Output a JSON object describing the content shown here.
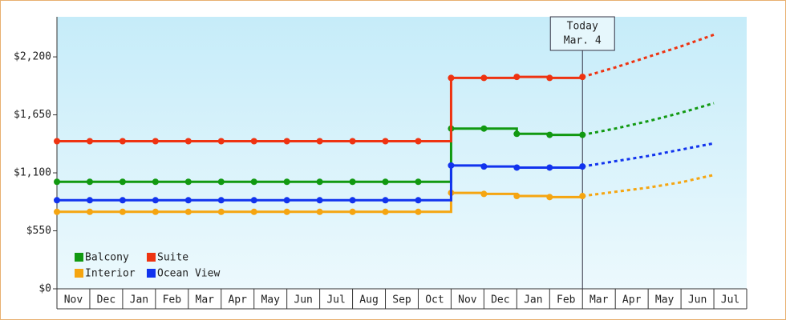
{
  "chart_data": {
    "type": "step-line",
    "categories": [
      "Nov",
      "Dec",
      "Jan",
      "Feb",
      "Mar",
      "Apr",
      "May",
      "Jun",
      "Jul",
      "Aug",
      "Sep",
      "Oct",
      "Nov",
      "Dec",
      "Jan",
      "Feb",
      "Mar",
      "Apr",
      "May",
      "Jun",
      "Jul"
    ],
    "series": [
      {
        "name": "Balcony",
        "color": "#119911",
        "values": [
          1015,
          1015,
          1015,
          1015,
          1015,
          1015,
          1015,
          1015,
          1015,
          1015,
          1015,
          1015,
          1520,
          1520,
          1470,
          1460,
          1460,
          null,
          null,
          null,
          null
        ],
        "forecast": [
          null,
          null,
          null,
          null,
          null,
          null,
          null,
          null,
          null,
          null,
          null,
          null,
          null,
          null,
          null,
          null,
          1460,
          1520,
          1590,
          1670,
          1760
        ]
      },
      {
        "name": "Suite",
        "color": "#ee3311",
        "values": [
          1400,
          1400,
          1400,
          1400,
          1400,
          1400,
          1400,
          1400,
          1400,
          1400,
          1400,
          1400,
          2000,
          2000,
          2010,
          2000,
          2010,
          null,
          null,
          null,
          null
        ],
        "forecast": [
          null,
          null,
          null,
          null,
          null,
          null,
          null,
          null,
          null,
          null,
          null,
          null,
          null,
          null,
          null,
          null,
          2010,
          2100,
          2200,
          2300,
          2410
        ]
      },
      {
        "name": "Interior",
        "color": "#f5a511",
        "values": [
          730,
          730,
          730,
          730,
          730,
          730,
          730,
          730,
          730,
          730,
          730,
          730,
          910,
          900,
          880,
          870,
          880,
          null,
          null,
          null,
          null
        ],
        "forecast": [
          null,
          null,
          null,
          null,
          null,
          null,
          null,
          null,
          null,
          null,
          null,
          null,
          null,
          null,
          null,
          null,
          880,
          920,
          960,
          1010,
          1080
        ]
      },
      {
        "name": "Ocean View",
        "color": "#1133ee",
        "values": [
          840,
          840,
          840,
          840,
          840,
          840,
          840,
          840,
          840,
          840,
          840,
          840,
          1170,
          1160,
          1150,
          1150,
          1160,
          null,
          null,
          null,
          null
        ],
        "forecast": [
          null,
          null,
          null,
          null,
          null,
          null,
          null,
          null,
          null,
          null,
          null,
          null,
          null,
          null,
          null,
          null,
          1160,
          1210,
          1260,
          1320,
          1380
        ]
      }
    ],
    "ylim": [
      0,
      2580
    ],
    "yticks": [
      0,
      {
        "value": 550,
        "label": "$550"
      },
      {
        "value": 1100,
        "label": "$1,100"
      },
      {
        "value": 1650,
        "label": "$1,650"
      },
      {
        "value": 2200,
        "label": "$2,200"
      }
    ],
    "yticks_zero_label": "$0",
    "annotation": {
      "lines": [
        "Today",
        "Mar. 4"
      ]
    },
    "legend": "bottom-left"
  }
}
